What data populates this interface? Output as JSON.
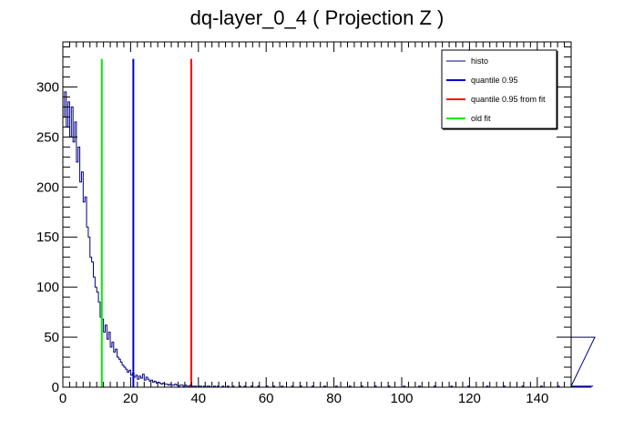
{
  "chart_data": {
    "type": "histogram",
    "title": "dq-layer_0_4 ( Projection Z )",
    "xlabel": "",
    "ylabel": "",
    "xlim": [
      0,
      150
    ],
    "ylim": [
      0,
      345
    ],
    "x_ticks": [
      0,
      20,
      40,
      60,
      80,
      100,
      120,
      140
    ],
    "y_ticks": [
      0,
      50,
      100,
      150,
      200,
      250,
      300
    ],
    "grid": false,
    "legend_position": "top-right",
    "series": [
      {
        "name": "histo",
        "kind": "histogram",
        "color": "#000080",
        "bin_width": 0.5,
        "bin_start": 0,
        "values": [
          270,
          295,
          260,
          285,
          250,
          280,
          245,
          265,
          225,
          240,
          205,
          215,
          185,
          190,
          160,
          150,
          130,
          125,
          110,
          100,
          95,
          85,
          70,
          68,
          55,
          62,
          48,
          55,
          40,
          45,
          35,
          38,
          30,
          28,
          25,
          22,
          20,
          18,
          15,
          17,
          12,
          14,
          10,
          12,
          8,
          11,
          9,
          13,
          7,
          10,
          8,
          6,
          7,
          5,
          6,
          4,
          5,
          4,
          3,
          4,
          3,
          3,
          2,
          3,
          2,
          2,
          3,
          2,
          1,
          2,
          2,
          1,
          2,
          1,
          1,
          2,
          1,
          1,
          1,
          0,
          1,
          1,
          0,
          1,
          0,
          1,
          1,
          0,
          0,
          1,
          0,
          1,
          0,
          0,
          1,
          0,
          0,
          1,
          0,
          0,
          1,
          0,
          0,
          0,
          1,
          0,
          0,
          1,
          0,
          0,
          0,
          1,
          0,
          0,
          0,
          1,
          0,
          0,
          0,
          0,
          1,
          0,
          0,
          0,
          1,
          0,
          0,
          0,
          0,
          1,
          0,
          0,
          0,
          0,
          0,
          1,
          0,
          0,
          0,
          0,
          1,
          0,
          0,
          0,
          0,
          0,
          0,
          1,
          0,
          0,
          0,
          0,
          0,
          0,
          1,
          0,
          0,
          0,
          0,
          0,
          0,
          1,
          0,
          0,
          0,
          0,
          0,
          0,
          0,
          1,
          0,
          0,
          0,
          0,
          0,
          0,
          1,
          0,
          0,
          0,
          0,
          0,
          0,
          0,
          1,
          0,
          0,
          0,
          0,
          0,
          0,
          0,
          1,
          0,
          0,
          0,
          0,
          0,
          0,
          0,
          0,
          1,
          0,
          0,
          0,
          0,
          0,
          0,
          0,
          0,
          1,
          0,
          0,
          0,
          0,
          0,
          0,
          0,
          0,
          1,
          0,
          0,
          0,
          0,
          0,
          0,
          0,
          0,
          0,
          1,
          0,
          0,
          0,
          0,
          0,
          0,
          0,
          0,
          0,
          1,
          0,
          0,
          0,
          0,
          0,
          0,
          0,
          0,
          0,
          0,
          1,
          0,
          0,
          0,
          0,
          0,
          0,
          0,
          0,
          0,
          1,
          0,
          0,
          0,
          0,
          0,
          0,
          0,
          0,
          0,
          0,
          1,
          0,
          0,
          0,
          0,
          0,
          0,
          0,
          0,
          0,
          0,
          1,
          0,
          0,
          0,
          0,
          0,
          0,
          0,
          0,
          0,
          1,
          0,
          0,
          0,
          0,
          0,
          0,
          0,
          0,
          0,
          0,
          1,
          0,
          0,
          0,
          0,
          0,
          0,
          0,
          0,
          0,
          1,
          50
        ]
      },
      {
        "name": "quantile 0.95",
        "kind": "vline",
        "x": 20.8,
        "y_top": 328,
        "color": "#0000cc"
      },
      {
        "name": "quantile 0.95 from fit",
        "kind": "vline",
        "x": 37.9,
        "y_top": 328,
        "color": "#ff0000"
      },
      {
        "name": "old fit",
        "kind": "vline",
        "x": 11.5,
        "y_top": 328,
        "color": "#00ee00"
      }
    ],
    "legend": [
      {
        "label": "histo",
        "color": "#000080"
      },
      {
        "label": "quantile 0.95",
        "color": "#0000cc"
      },
      {
        "label": "quantile 0.95 from fit",
        "color": "#ff0000"
      },
      {
        "label": "old fit",
        "color": "#00ee00"
      }
    ]
  }
}
